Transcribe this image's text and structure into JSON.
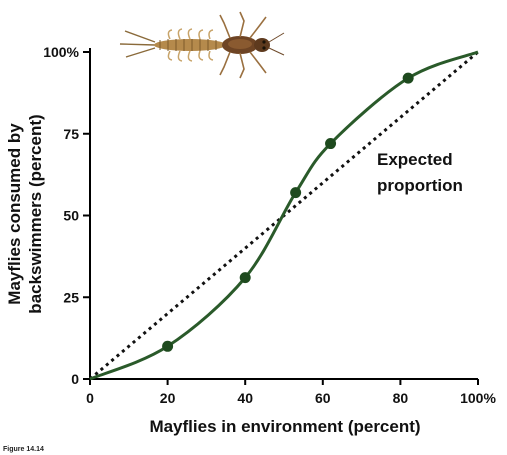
{
  "chart_data": {
    "type": "line",
    "title": "",
    "xlabel": "Mayflies in environment (percent)",
    "ylabel_lines": [
      "Mayflies consumed by",
      "backswimmers (percent)"
    ],
    "xlim": [
      0,
      100
    ],
    "ylim": [
      0,
      100
    ],
    "x_ticks": [
      {
        "value": 0,
        "label": "0"
      },
      {
        "value": 20,
        "label": "20"
      },
      {
        "value": 40,
        "label": "40"
      },
      {
        "value": 60,
        "label": "60"
      },
      {
        "value": 80,
        "label": "80"
      },
      {
        "value": 100,
        "label": "100%"
      }
    ],
    "y_ticks": [
      {
        "value": 0,
        "label": "0"
      },
      {
        "value": 25,
        "label": "25"
      },
      {
        "value": 50,
        "label": "50"
      },
      {
        "value": 75,
        "label": "75"
      },
      {
        "value": 100,
        "label": "100%"
      }
    ],
    "observed": {
      "color": "#2a5a2a",
      "points": [
        {
          "x": 20,
          "y": 10
        },
        {
          "x": 40,
          "y": 31
        },
        {
          "x": 53,
          "y": 57
        },
        {
          "x": 62,
          "y": 72
        },
        {
          "x": 82,
          "y": 92
        }
      ],
      "curve": [
        {
          "x": 0,
          "y": 0
        },
        {
          "x": 20,
          "y": 10
        },
        {
          "x": 40,
          "y": 31
        },
        {
          "x": 53,
          "y": 57
        },
        {
          "x": 62,
          "y": 72
        },
        {
          "x": 82,
          "y": 92
        },
        {
          "x": 100,
          "y": 100
        }
      ]
    },
    "expected": {
      "color": "#111111",
      "style": "dotted",
      "points": [
        {
          "x": 0,
          "y": 0
        },
        {
          "x": 100,
          "y": 100
        }
      ]
    },
    "annotation_lines": [
      "Expected",
      "proportion"
    ],
    "grid": false,
    "legend": "none"
  },
  "illustration": {
    "icon": "mayfly-larva-icon"
  },
  "figure_caption": "Figure 14.14"
}
